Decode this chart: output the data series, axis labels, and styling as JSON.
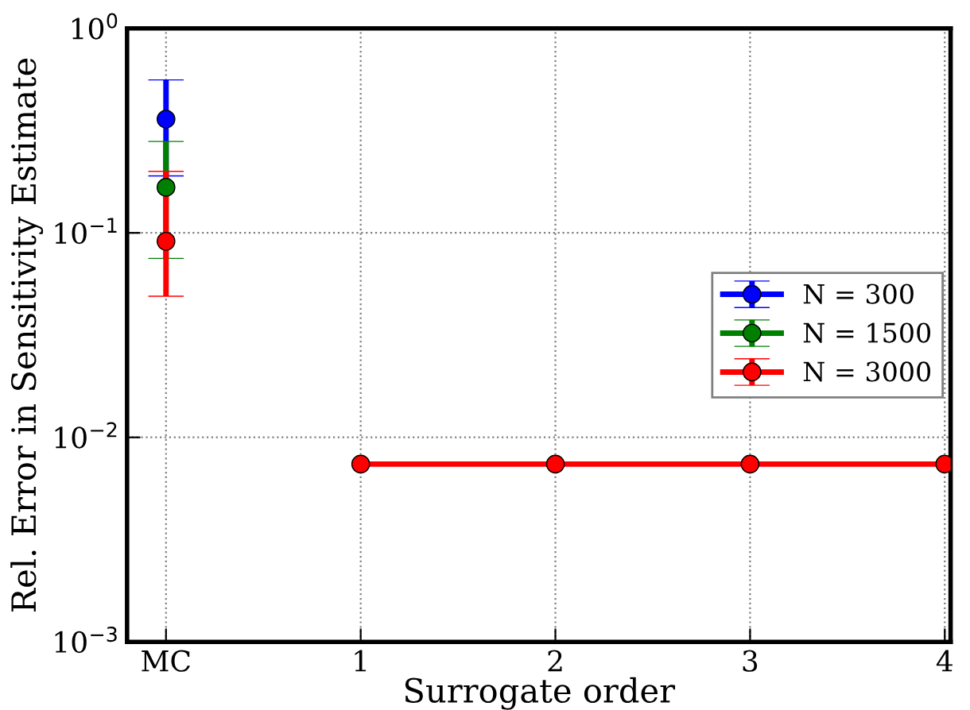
{
  "chart_data": {
    "type": "line",
    "xlabel": "Surrogate order",
    "ylabel": "Rel. Error in Sensitivity Estimate",
    "series": [
      {
        "name": "N = 300",
        "color": "#0000ff",
        "x": [
          0
        ],
        "values": [
          0.36
        ],
        "errors": [
          [
            0.19,
            0.56
          ]
        ]
      },
      {
        "name": "N = 1500",
        "color": "#008000",
        "x": [
          0
        ],
        "values": [
          0.167
        ],
        "errors": [
          [
            0.075,
            0.28
          ]
        ]
      },
      {
        "name": "N = 3000",
        "color": "#ff0000",
        "x": [
          0
        ],
        "values": [
          0.091
        ],
        "errors": [
          [
            0.049,
            0.2
          ]
        ]
      },
      {
        "color": "#ff0000",
        "x": [
          1,
          2,
          3,
          4
        ],
        "values": [
          0.0074,
          0.0074,
          0.0074,
          0.0074
        ]
      }
    ],
    "log": "y",
    "xlim": [
      -0.2,
      4.03
    ],
    "ylim": [
      0.001,
      1
    ],
    "xticks": [
      {
        "value": 0,
        "label": "MC"
      },
      1,
      2,
      3,
      4
    ],
    "yticks": [
      {
        "value": 0.001,
        "label": "10$^{−3}$"
      },
      {
        "value": 0.01,
        "label": "10$^{−2}$"
      },
      {
        "value": 0.1,
        "label": "10$^{−1}$"
      },
      {
        "value": 1,
        "label": "10$^{0}$"
      }
    ],
    "grid": true,
    "legend": "right",
    "marker": "circle",
    "line_style": "solid"
  }
}
